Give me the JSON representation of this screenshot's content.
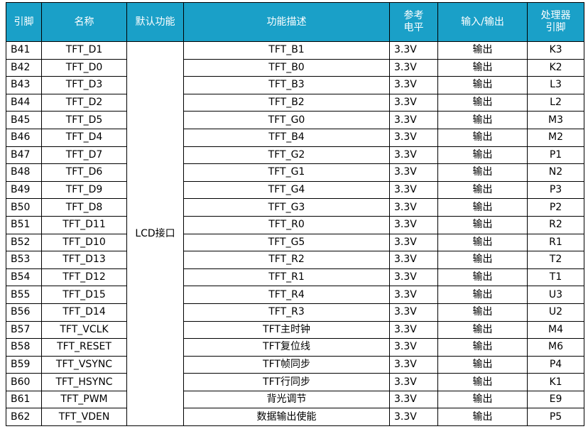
{
  "headers": {
    "pin": "引脚",
    "name": "名称",
    "default_func": "默认功能",
    "desc": "功能描述",
    "ref_level_line1": "参考",
    "ref_level_line2": "电平",
    "io": "输入/输出",
    "proc_pin_line1": "处理器",
    "proc_pin_line2": "引脚"
  },
  "default_function": "LCD接口",
  "rows": [
    {
      "pin": "B41",
      "name": "TFT_D1",
      "desc": "TFT_B1",
      "level": "3.3V",
      "io": "输出",
      "proc": "K3"
    },
    {
      "pin": "B42",
      "name": "TFT_D0",
      "desc": "TFT_B0",
      "level": "3.3V",
      "io": "输出",
      "proc": "K2"
    },
    {
      "pin": "B43",
      "name": "TFT_D3",
      "desc": "TFT_B3",
      "level": "3.3V",
      "io": "输出",
      "proc": "L3"
    },
    {
      "pin": "B44",
      "name": "TFT_D2",
      "desc": "TFT_B2",
      "level": "3.3V",
      "io": "输出",
      "proc": "L2"
    },
    {
      "pin": "B45",
      "name": "TFT_D5",
      "desc": "TFT_G0",
      "level": "3.3V",
      "io": "输出",
      "proc": "M3"
    },
    {
      "pin": "B46",
      "name": "TFT_D4",
      "desc": "TFT_B4",
      "level": "3.3V",
      "io": "输出",
      "proc": "M2"
    },
    {
      "pin": "B47",
      "name": "TFT_D7",
      "desc": "TFT_G2",
      "level": "3.3V",
      "io": "输出",
      "proc": "P1"
    },
    {
      "pin": "B48",
      "name": "TFT_D6",
      "desc": "TFT_G1",
      "level": "3.3V",
      "io": "输出",
      "proc": "N2"
    },
    {
      "pin": "B49",
      "name": "TFT_D9",
      "desc": "TFT_G4",
      "level": "3.3V",
      "io": "输出",
      "proc": "P3"
    },
    {
      "pin": "B50",
      "name": "TFT_D8",
      "desc": "TFT_G3",
      "level": "3.3V",
      "io": "输出",
      "proc": "P2"
    },
    {
      "pin": "B51",
      "name": "TFT_D11",
      "desc": "TFT_R0",
      "level": "3.3V",
      "io": "输出",
      "proc": "R2"
    },
    {
      "pin": "B52",
      "name": "TFT_D10",
      "desc": "TFT_G5",
      "level": "3.3V",
      "io": "输出",
      "proc": "R1"
    },
    {
      "pin": "B53",
      "name": "TFT_D13",
      "desc": "TFT_R2",
      "level": "3.3V",
      "io": "输出",
      "proc": "T2"
    },
    {
      "pin": "B54",
      "name": "TFT_D12",
      "desc": "TFT_R1",
      "level": "3.3V",
      "io": "输出",
      "proc": "T1"
    },
    {
      "pin": "B55",
      "name": "TFT_D15",
      "desc": "TFT_R4",
      "level": "3.3V",
      "io": "输出",
      "proc": "U3"
    },
    {
      "pin": "B56",
      "name": "TFT_D14",
      "desc": "TFT_R3",
      "level": "3.3V",
      "io": "输出",
      "proc": "U2"
    },
    {
      "pin": "B57",
      "name": "TFT_VCLK",
      "desc": "TFT主时钟",
      "level": "3.3V",
      "io": "输出",
      "proc": "M4"
    },
    {
      "pin": "B58",
      "name": "TFT_RESET",
      "desc": "TFT复位线",
      "level": "3.3V",
      "io": "输出",
      "proc": "M6"
    },
    {
      "pin": "B59",
      "name": "TFT_VSYNC",
      "desc": "TFT帧同步",
      "level": "3.3V",
      "io": "输出",
      "proc": "P4"
    },
    {
      "pin": "B60",
      "name": "TFT_HSYNC",
      "desc": "TFT行同步",
      "level": "3.3V",
      "io": "输出",
      "proc": "K1"
    },
    {
      "pin": "B61",
      "name": "TFT_PWM",
      "desc": "背光调节",
      "level": "3.3V",
      "io": "输出",
      "proc": "E9"
    },
    {
      "pin": "B62",
      "name": "TFT_VDEN",
      "desc": "数据输出使能",
      "level": "3.3V",
      "io": "输出",
      "proc": "P5"
    }
  ]
}
